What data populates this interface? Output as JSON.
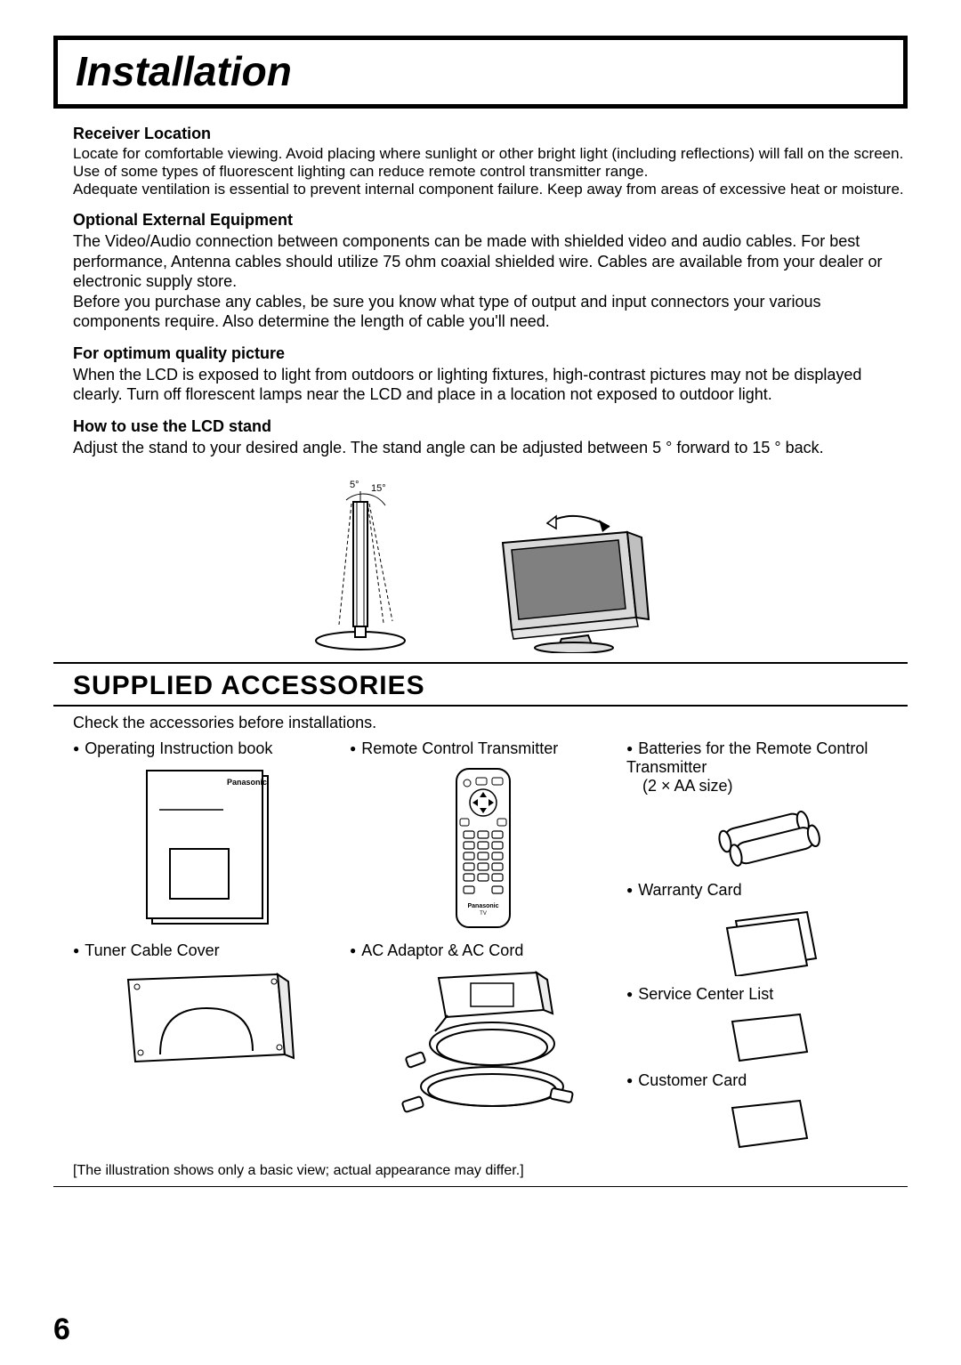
{
  "page_number": "6",
  "title": "Installation",
  "sections": [
    {
      "heading": "Receiver Location",
      "body": "Locate for comfortable viewing. Avoid placing where sunlight or other bright light (including reflections) will fall on the screen. Use of some types of fluorescent lighting can reduce remote control transmitter range.\nAdequate ventilation is essential to prevent internal component failure. Keep away from areas of excessive heat or moisture."
    },
    {
      "heading": "Optional External Equipment",
      "body": "The Video/Audio connection between components can be made with shielded video and audio cables. For best performance, Antenna cables should utilize 75 ohm coaxial shielded wire. Cables are available from your dealer or electronic supply store.\nBefore you purchase any cables, be sure you know what type of output and input connectors your various components require. Also determine the length of cable you'll need."
    },
    {
      "heading": "For optimum quality picture",
      "body": "When the LCD is exposed to light from outdoors or lighting fixtures, high-contrast pictures may not be displayed clearly. Turn off florescent lamps near the LCD and place in a location not exposed to outdoor light."
    },
    {
      "heading": "How to use the LCD stand",
      "body": "Adjust the stand to your desired angle. The stand angle can be adjusted between 5 ° forward to 15 ° back."
    }
  ],
  "stand_angles": {
    "forward": "5°",
    "back": "15°"
  },
  "supplied_heading": "SUPPLIED ACCESSORIES",
  "supplied_intro": "Check the accessories before installations.",
  "accessories": {
    "col1": [
      {
        "label": "Operating Instruction book"
      },
      {
        "label": "Tuner Cable Cover"
      }
    ],
    "col2": [
      {
        "label": "Remote Control Transmitter"
      },
      {
        "label": "AC Adaptor & AC Cord"
      }
    ],
    "col3": [
      {
        "label": "Batteries for the Remote Control Transmitter",
        "sub": "(2 × AA size)"
      },
      {
        "label": "Warranty Card"
      },
      {
        "label": "Service Center List"
      },
      {
        "label": "Customer Card"
      }
    ]
  },
  "manual_brand": "Panasonic",
  "remote_brand": "Panasonic",
  "remote_sub": "TV",
  "footnote": "[The illustration shows only a basic view; actual appearance may differ.]",
  "colors": {
    "text": "#000000",
    "bg": "#ffffff"
  }
}
